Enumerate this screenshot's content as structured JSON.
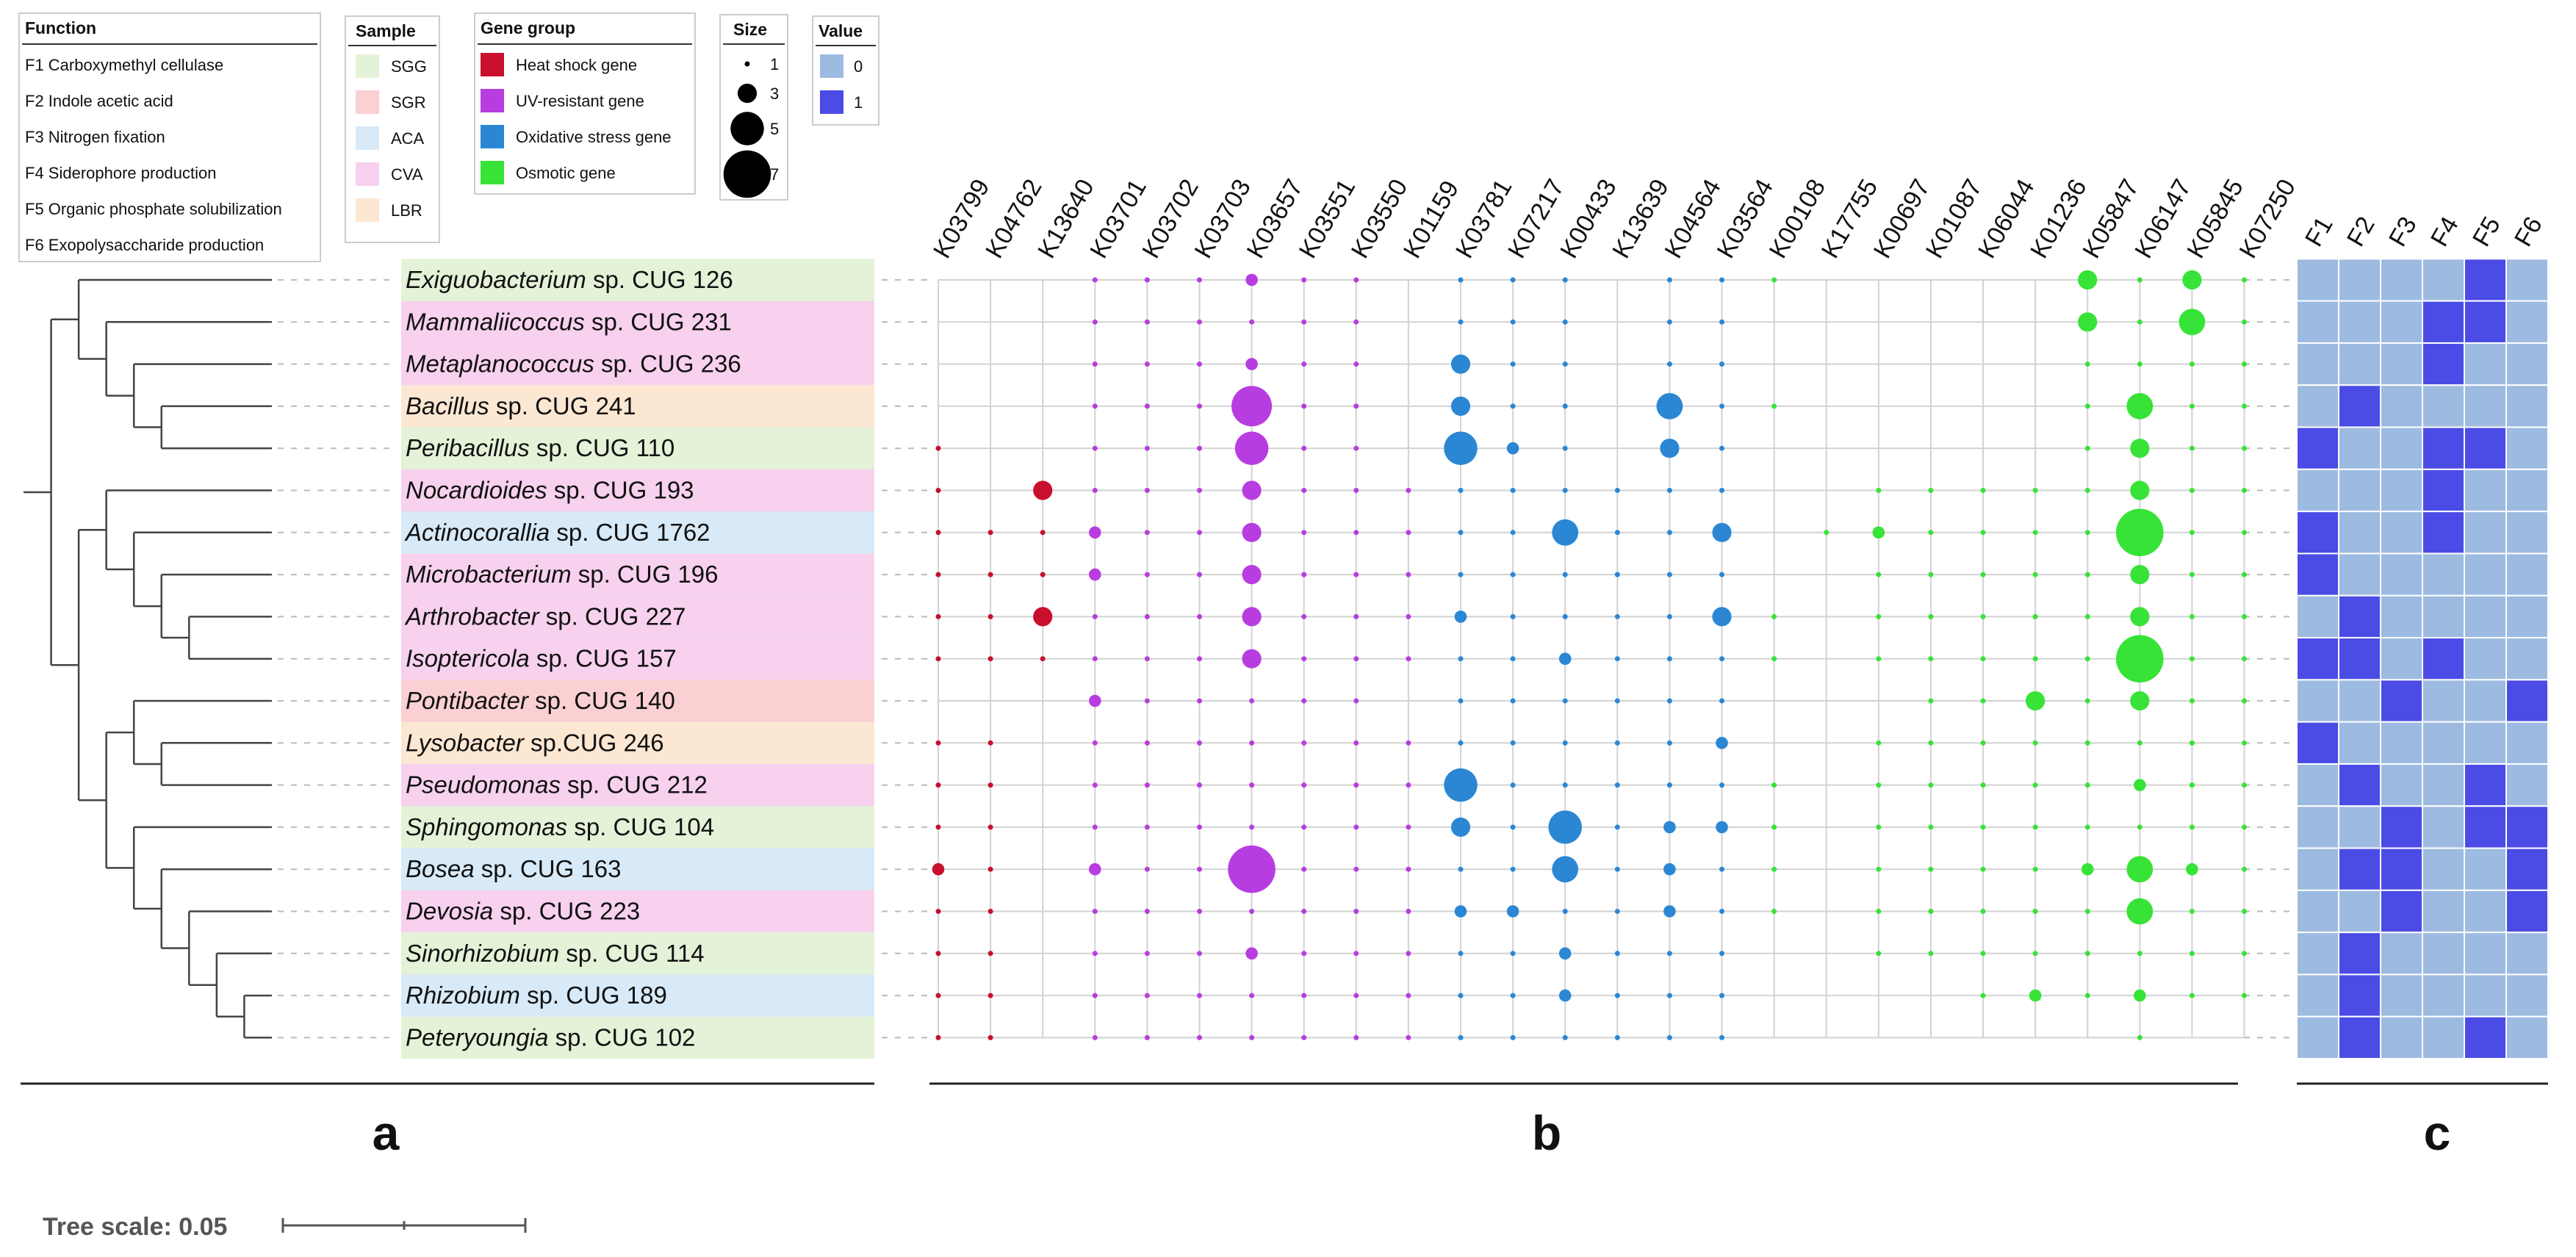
{
  "legends": {
    "function": {
      "title": "Function",
      "items": [
        "F1 Carboxymethyl cellulase",
        "F2 Indole acetic acid",
        "F3 Nitrogen fixation",
        "F4 Siderophore production",
        "F5 Organic phosphate solubilization",
        "F6 Exopolysaccharide production"
      ]
    },
    "sample": {
      "title": "Sample",
      "items": [
        {
          "label": "SGG",
          "color": "#e4f2d8"
        },
        {
          "label": "SGR",
          "color": "#fad0d2"
        },
        {
          "label": "ACA",
          "color": "#d8e9f7"
        },
        {
          "label": "CVA",
          "color": "#f7d1ee"
        },
        {
          "label": "LBR",
          "color": "#fbe7d2"
        }
      ]
    },
    "gene_group": {
      "title": "Gene group",
      "items": [
        {
          "label": "Heat shock gene",
          "color": "#c8102e"
        },
        {
          "label": "UV-resistant gene",
          "color": "#b83de0"
        },
        {
          "label": "Oxidative stress gene",
          "color": "#2b87d3"
        },
        {
          "label": "Osmotic gene",
          "color": "#37e337"
        }
      ]
    },
    "size": {
      "title": "Size",
      "items": [
        1,
        3,
        5,
        7
      ]
    },
    "value": {
      "title": "Value",
      "items": [
        {
          "label": "0",
          "color": "#9dbbe0"
        },
        {
          "label": "1",
          "color": "#4b4be6"
        }
      ]
    }
  },
  "panel_labels": {
    "a": "a",
    "b": "b",
    "c": "c"
  },
  "tree_scale": {
    "label": "Tree scale: 0.05",
    "value": 0.05
  },
  "chart_data": [
    {
      "type": "phylogenetic-tree",
      "newick": "(((A,(B,(C,(D,E)))),((F,(G,(H,(I,J)))),((K,(L,M)),(N,(O,(P,(Q,(R,S)))))))));",
      "leaf_order": [
        "Exiguobacterium sp. CUG 126",
        "Mammaliicoccus sp. CUG 231",
        "Metaplanococcus sp. CUG 236",
        "Bacillus sp. CUG 241",
        "Peribacillus sp. CUG 110",
        "Nocardioides sp. CUG 193",
        "Actinocorallia sp. CUG 1762",
        "Microbacterium sp. CUG 196",
        "Arthrobacter sp. CUG 227",
        "Isoptericola sp. CUG 157",
        "Pontibacter sp. CUG 140",
        "Lysobacter sp.CUG 246",
        "Pseudomonas sp. CUG 212",
        "Sphingomonas sp. CUG 104",
        "Bosea sp. CUG 163",
        "Devosia sp. CUG 223",
        "Sinorhizobium sp. CUG 114",
        "Rhizobium sp. CUG 189",
        "Peteryoungia sp. CUG 102"
      ]
    },
    {
      "type": "scatter",
      "subtype": "bubble-grid",
      "categories": [
        "K03799",
        "K04762",
        "K13640",
        "K03701",
        "K03702",
        "K03703",
        "K03657",
        "K03551",
        "K03550",
        "K01159",
        "K03781",
        "K07217",
        "K00433",
        "K13639",
        "K04564",
        "K03564",
        "K00108",
        "K17755",
        "K00697",
        "K01087",
        "K06044",
        "K01236",
        "K05847",
        "K06147",
        "K05845",
        "K07250"
      ],
      "gene_group_of_column": [
        "Heat shock gene",
        "Heat shock gene",
        "Heat shock gene",
        "UV-resistant gene",
        "UV-resistant gene",
        "UV-resistant gene",
        "UV-resistant gene",
        "UV-resistant gene",
        "UV-resistant gene",
        "UV-resistant gene",
        "Oxidative stress gene",
        "Oxidative stress gene",
        "Oxidative stress gene",
        "Oxidative stress gene",
        "Oxidative stress gene",
        "Oxidative stress gene",
        "Osmotic gene",
        "Osmotic gene",
        "Osmotic gene",
        "Osmotic gene",
        "Osmotic gene",
        "Osmotic gene",
        "Osmotic gene",
        "Osmotic gene",
        "Osmotic gene",
        "Osmotic gene"
      ],
      "rows": [
        {
          "genus": "Exiguobacterium",
          "suffix": " sp. CUG 126",
          "sample": "SGG",
          "counts": [
            0,
            0,
            0,
            1,
            1,
            1,
            2,
            1,
            1,
            0,
            1,
            1,
            1,
            0,
            1,
            1,
            1,
            0,
            0,
            0,
            0,
            0,
            3,
            1,
            3,
            1
          ],
          "functions": [
            0,
            0,
            0,
            0,
            1,
            0
          ]
        },
        {
          "genus": "Mammaliicoccus",
          "suffix": " sp. CUG 231",
          "sample": "CVA",
          "counts": [
            0,
            0,
            0,
            1,
            1,
            1,
            1,
            1,
            1,
            0,
            1,
            1,
            1,
            0,
            1,
            1,
            0,
            0,
            0,
            0,
            0,
            0,
            3,
            1,
            4,
            1
          ],
          "functions": [
            0,
            0,
            0,
            1,
            1,
            0
          ]
        },
        {
          "genus": "Metaplanococcus",
          "suffix": " sp. CUG 236",
          "sample": "CVA",
          "counts": [
            0,
            0,
            0,
            1,
            1,
            1,
            2,
            1,
            1,
            0,
            3,
            1,
            1,
            0,
            1,
            1,
            0,
            0,
            0,
            0,
            0,
            0,
            1,
            1,
            1,
            1
          ],
          "functions": [
            0,
            0,
            0,
            1,
            0,
            0
          ]
        },
        {
          "genus": "Bacillus",
          "suffix": " sp. CUG 241",
          "sample": "LBR",
          "counts": [
            0,
            0,
            0,
            1,
            1,
            1,
            6,
            1,
            1,
            0,
            3,
            1,
            1,
            0,
            4,
            1,
            1,
            0,
            0,
            0,
            0,
            0,
            1,
            4,
            1,
            1
          ],
          "functions": [
            0,
            1,
            0,
            0,
            0,
            0
          ]
        },
        {
          "genus": "Peribacillus",
          "suffix": " sp. CUG 110",
          "sample": "SGG",
          "counts": [
            1,
            0,
            0,
            1,
            1,
            1,
            5,
            1,
            1,
            0,
            5,
            2,
            1,
            0,
            3,
            1,
            0,
            0,
            0,
            0,
            0,
            0,
            1,
            3,
            1,
            1
          ],
          "functions": [
            1,
            0,
            0,
            1,
            1,
            0
          ]
        },
        {
          "genus": "Nocardioides",
          "suffix": " sp. CUG 193",
          "sample": "CVA",
          "counts": [
            1,
            0,
            3,
            1,
            1,
            1,
            3,
            1,
            1,
            1,
            1,
            1,
            1,
            1,
            1,
            1,
            0,
            0,
            1,
            1,
            1,
            1,
            1,
            3,
            1,
            1
          ],
          "functions": [
            0,
            0,
            0,
            1,
            0,
            0
          ]
        },
        {
          "genus": "Actinocorallia",
          "suffix": " sp. CUG 1762",
          "sample": "ACA",
          "counts": [
            1,
            1,
            1,
            2,
            1,
            1,
            3,
            1,
            1,
            1,
            1,
            1,
            4,
            1,
            1,
            3,
            0,
            1,
            2,
            1,
            1,
            1,
            1,
            7,
            1,
            1
          ],
          "functions": [
            1,
            0,
            0,
            1,
            0,
            0
          ]
        },
        {
          "genus": "Microbacterium",
          "suffix": " sp. CUG 196",
          "sample": "CVA",
          "counts": [
            1,
            1,
            1,
            2,
            1,
            1,
            3,
            1,
            1,
            1,
            1,
            1,
            1,
            1,
            1,
            1,
            0,
            0,
            1,
            1,
            1,
            1,
            1,
            3,
            1,
            1
          ],
          "functions": [
            1,
            0,
            0,
            0,
            0,
            0
          ]
        },
        {
          "genus": "Arthrobacter",
          "suffix": " sp. CUG 227",
          "sample": "CVA",
          "counts": [
            1,
            1,
            3,
            1,
            1,
            1,
            3,
            1,
            1,
            1,
            2,
            1,
            1,
            1,
            1,
            3,
            1,
            0,
            1,
            1,
            1,
            1,
            1,
            3,
            1,
            1
          ],
          "functions": [
            0,
            1,
            0,
            0,
            0,
            0
          ]
        },
        {
          "genus": "Isoptericola",
          "suffix": " sp. CUG 157",
          "sample": "CVA",
          "counts": [
            1,
            1,
            1,
            1,
            1,
            1,
            3,
            1,
            1,
            1,
            1,
            1,
            2,
            1,
            1,
            1,
            1,
            0,
            1,
            1,
            1,
            1,
            1,
            7,
            1,
            1
          ],
          "functions": [
            1,
            1,
            0,
            1,
            0,
            0
          ]
        },
        {
          "genus": "Pontibacter",
          "suffix": " sp. CUG 140",
          "sample": "SGR",
          "counts": [
            0,
            0,
            0,
            2,
            1,
            1,
            1,
            1,
            1,
            0,
            1,
            1,
            1,
            1,
            1,
            1,
            0,
            0,
            0,
            1,
            1,
            3,
            1,
            3,
            1,
            1
          ],
          "functions": [
            0,
            0,
            1,
            0,
            0,
            1
          ]
        },
        {
          "genus": "Lysobacter",
          "suffix": " sp.CUG 246",
          "sample": "LBR",
          "counts": [
            1,
            1,
            0,
            1,
            1,
            1,
            1,
            1,
            1,
            1,
            1,
            1,
            1,
            1,
            1,
            2,
            0,
            0,
            1,
            1,
            1,
            1,
            1,
            1,
            1,
            1
          ],
          "functions": [
            1,
            0,
            0,
            0,
            0,
            0
          ]
        },
        {
          "genus": "Pseudomonas",
          "suffix": " sp. CUG 212",
          "sample": "CVA",
          "counts": [
            1,
            1,
            0,
            1,
            1,
            1,
            1,
            1,
            1,
            1,
            5,
            1,
            1,
            1,
            1,
            1,
            1,
            0,
            1,
            1,
            1,
            1,
            1,
            2,
            1,
            1
          ],
          "functions": [
            0,
            1,
            0,
            0,
            1,
            0
          ]
        },
        {
          "genus": "Sphingomonas",
          "suffix": " sp. CUG 104",
          "sample": "SGG",
          "counts": [
            1,
            1,
            0,
            1,
            1,
            1,
            1,
            1,
            1,
            1,
            3,
            1,
            5,
            1,
            2,
            2,
            1,
            0,
            1,
            1,
            1,
            1,
            1,
            1,
            1,
            1
          ],
          "functions": [
            0,
            0,
            1,
            0,
            1,
            1
          ]
        },
        {
          "genus": "Bosea",
          "suffix": " sp. CUG 163",
          "sample": "ACA",
          "counts": [
            2,
            1,
            0,
            2,
            1,
            1,
            7,
            1,
            1,
            1,
            1,
            1,
            4,
            1,
            2,
            1,
            1,
            0,
            1,
            1,
            1,
            1,
            2,
            4,
            2,
            1
          ],
          "functions": [
            0,
            1,
            1,
            0,
            0,
            1
          ]
        },
        {
          "genus": "Devosia",
          "suffix": " sp. CUG 223",
          "sample": "CVA",
          "counts": [
            1,
            1,
            0,
            1,
            1,
            1,
            1,
            1,
            1,
            1,
            2,
            2,
            1,
            1,
            2,
            1,
            1,
            0,
            1,
            1,
            1,
            1,
            1,
            4,
            1,
            1
          ],
          "functions": [
            0,
            0,
            1,
            0,
            0,
            1
          ]
        },
        {
          "genus": "Sinorhizobium",
          "suffix": " sp. CUG 114",
          "sample": "SGG",
          "counts": [
            1,
            1,
            0,
            1,
            1,
            1,
            2,
            1,
            1,
            1,
            1,
            1,
            2,
            1,
            1,
            1,
            0,
            0,
            1,
            1,
            1,
            1,
            1,
            1,
            1,
            1
          ],
          "functions": [
            0,
            1,
            0,
            0,
            0,
            0
          ]
        },
        {
          "genus": "Rhizobium",
          "suffix": " sp. CUG 189",
          "sample": "ACA",
          "counts": [
            1,
            1,
            0,
            1,
            1,
            1,
            1,
            1,
            1,
            1,
            1,
            1,
            2,
            1,
            1,
            1,
            0,
            0,
            0,
            0,
            1,
            2,
            1,
            2,
            1,
            1
          ],
          "functions": [
            0,
            1,
            0,
            0,
            0,
            0
          ]
        },
        {
          "genus": "Peteryoungia",
          "suffix": " sp. CUG 102",
          "sample": "SGG",
          "counts": [
            1,
            1,
            0,
            1,
            1,
            1,
            1,
            1,
            1,
            1,
            1,
            1,
            1,
            1,
            1,
            1,
            0,
            0,
            0,
            0,
            0,
            0,
            0,
            1,
            0,
            0
          ],
          "functions": [
            0,
            1,
            0,
            0,
            1,
            0
          ]
        }
      ]
    },
    {
      "type": "heatmap",
      "columns": [
        "F1",
        "F2",
        "F3",
        "F4",
        "F5",
        "F6"
      ],
      "values_source": "rows[].functions (0/1)"
    }
  ]
}
